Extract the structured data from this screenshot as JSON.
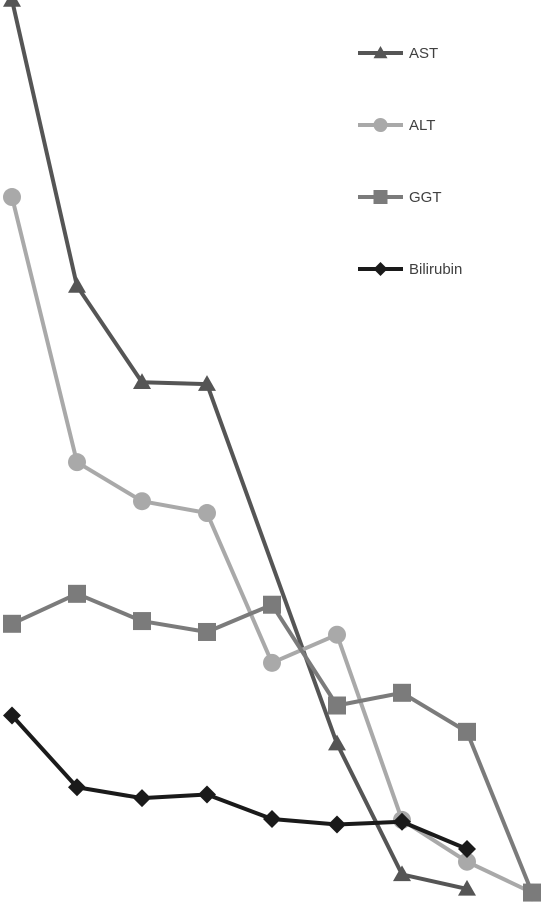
{
  "chart_data": {
    "type": "line",
    "title": "",
    "xlabel": "",
    "ylabel": "",
    "x": [
      1,
      2,
      3,
      4,
      5,
      6,
      7,
      8,
      9
    ],
    "ylim": [
      0,
      100
    ],
    "grid": false,
    "legend_position": "top-right",
    "series": [
      {
        "name": "AST",
        "marker": "triangle",
        "color": "#555555",
        "values": [
          100,
          68.5,
          57.9,
          57.7,
          null,
          18.1,
          3.7,
          2.1,
          null
        ]
      },
      {
        "name": "ALT",
        "marker": "circle",
        "color": "#a9a9a9",
        "values": [
          78.3,
          49.1,
          44.8,
          43.5,
          27.0,
          30.1,
          9.7,
          5.1,
          1.7
        ]
      },
      {
        "name": "GGT",
        "marker": "square",
        "color": "#7b7b7b",
        "values": [
          31.3,
          34.6,
          31.6,
          30.4,
          33.4,
          22.3,
          23.7,
          19.4,
          1.7
        ]
      },
      {
        "name": "Bilirubin",
        "marker": "diamond",
        "color": "#1a1a1a",
        "values": [
          21.2,
          13.3,
          12.1,
          12.5,
          9.8,
          9.2,
          9.5,
          6.5,
          null
        ]
      }
    ]
  }
}
